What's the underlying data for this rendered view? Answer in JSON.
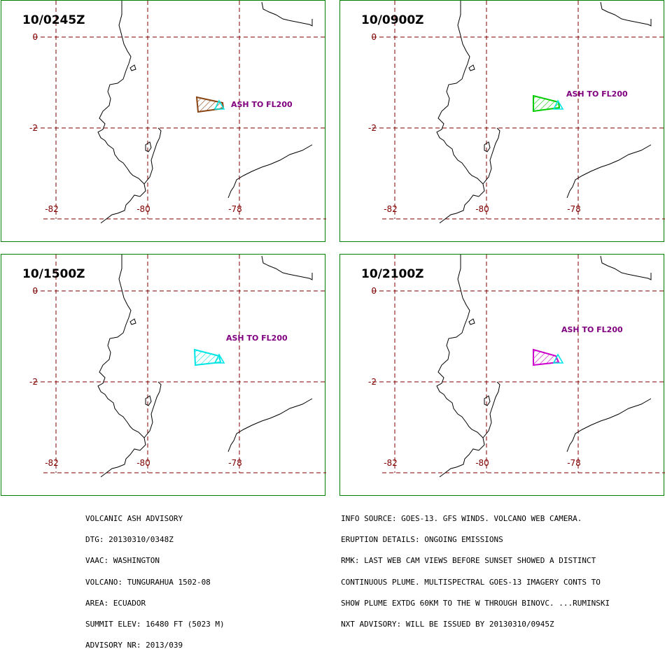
{
  "panels": [
    {
      "title": "10/0245Z",
      "label": "ASH TO FL200",
      "plume_color": "#8B4513"
    },
    {
      "title": "10/0900Z",
      "label": "ASH TO FL200",
      "plume_color": "#00CC00"
    },
    {
      "title": "10/1500Z",
      "label": "ASH TO FL200",
      "plume_color": "#00E5E5"
    },
    {
      "title": "10/2100Z",
      "label": "ASH TO FL200",
      "plume_color": "#CC00CC"
    }
  ],
  "map": {
    "lat_labels": [
      "0",
      "-2"
    ],
    "lon_labels": [
      "-82",
      "-80",
      "-78"
    ],
    "grid_color": "#800000",
    "coast_color": "#000000",
    "volcano_color": "#00E5E5"
  },
  "advisory_left": [
    "VOLCANIC ASH ADVISORY",
    "DTG: 20130310/0348Z",
    "VAAC: WASHINGTON",
    "VOLCANO: TUNGURAHUA 1502-08",
    "AREA: ECUADOR",
    "SUMMIT ELEV: 16480 FT (5023 M)",
    "ADVISORY NR: 2013/039"
  ],
  "advisory_right": [
    "INFO SOURCE: GOES-13. GFS WINDS. VOLCANO WEB CAMERA.",
    "ERUPTION DETAILS: ONGOING EMISSIONS",
    "RMK: LAST WEB CAM VIEWS BEFORE SUNSET SHOWED A DISTINCT",
    "CONTINUOUS PLUME. MULTISPECTRAL GOES-13 IMAGERY CONTS TO",
    "SHOW PLUME EXTDG 60KM TO THE W THROUGH BINOVC. ...RUMINSKI",
    "NXT ADVISORY: WILL BE ISSUED BY 20130310/0945Z"
  ]
}
